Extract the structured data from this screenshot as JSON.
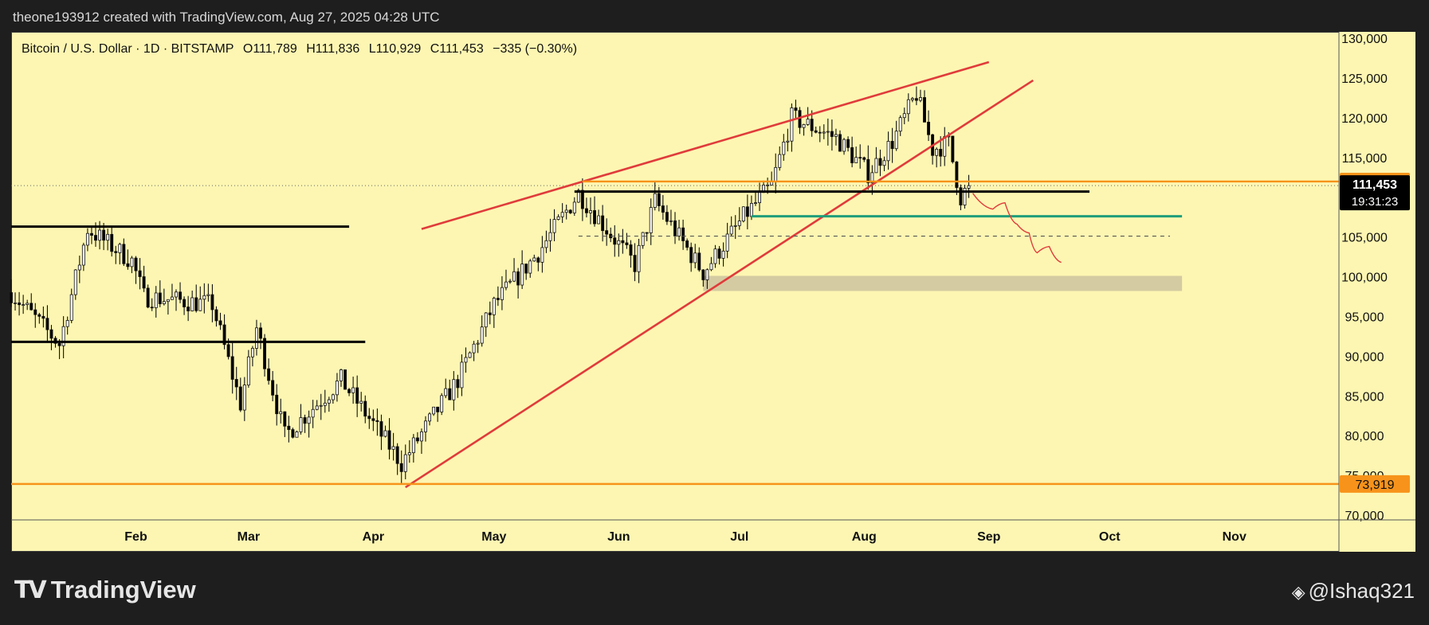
{
  "header": {
    "attribution": "theone193912 created with TradingView.com, Aug 27, 2025 04:28 UTC"
  },
  "legend": {
    "symbol": "Bitcoin / U.S. Dollar · 1D · BITSTAMP",
    "open": "O111,789",
    "high": "H111,836",
    "low": "L110,929",
    "close": "C111,453",
    "change": "−335 (−0.30%)"
  },
  "footer": {
    "brand": "TradingView",
    "user": "@Ishaq321",
    "user_icon": "binance-diamond-icon"
  },
  "colors": {
    "background": "#fdf6b2",
    "bull": "#ffffff",
    "bear": "#000000",
    "wedge": "#e03b3b",
    "support": "#000000",
    "orange_level": "#f7931a",
    "green_level": "#1f9e7a",
    "demand_zone": "#cfc6a0"
  },
  "chart_data": {
    "type": "candlestick",
    "timeframe": "1D",
    "y_axis": {
      "position": "right",
      "ticks": [
        "130,000",
        "125,000",
        "120,000",
        "115,000",
        "110,000",
        "105,000",
        "100,000",
        "95,000",
        "90,000",
        "85,000",
        "80,000",
        "75,000",
        "70,000"
      ],
      "range": [
        70000,
        130000
      ]
    },
    "x_axis": {
      "ticks": [
        "Feb",
        "Mar",
        "Apr",
        "May",
        "Jun",
        "Jul",
        "Aug",
        "Sep",
        "Oct",
        "Nov"
      ],
      "range": [
        "2025-01-01",
        "2025-11-27"
      ]
    },
    "price_labels": [
      {
        "value": "111,972",
        "kind": "orange-level"
      },
      {
        "value": "111,453",
        "sub": "19:31:23",
        "kind": "last-price"
      },
      {
        "value": "73,919",
        "kind": "orange-level"
      }
    ],
    "anchors": [
      {
        "date": "2025-01-01",
        "price": 98000
      },
      {
        "date": "2025-01-13",
        "price": 91500
      },
      {
        "date": "2025-01-20",
        "price": 106000
      },
      {
        "date": "2025-01-31",
        "price": 102000
      },
      {
        "date": "2025-02-03",
        "price": 97500
      },
      {
        "date": "2025-02-20",
        "price": 96500
      },
      {
        "date": "2025-02-27",
        "price": 84000
      },
      {
        "date": "2025-03-03",
        "price": 93500
      },
      {
        "date": "2025-03-10",
        "price": 80000
      },
      {
        "date": "2025-03-24",
        "price": 87000
      },
      {
        "date": "2025-04-06",
        "price": 78000
      },
      {
        "date": "2025-04-08",
        "price": 76500
      },
      {
        "date": "2025-04-22",
        "price": 87000
      },
      {
        "date": "2025-05-01",
        "price": 96500
      },
      {
        "date": "2025-05-12",
        "price": 103000
      },
      {
        "date": "2025-05-22",
        "price": 110500
      },
      {
        "date": "2025-06-05",
        "price": 101500
      },
      {
        "date": "2025-06-10",
        "price": 109500
      },
      {
        "date": "2025-06-22",
        "price": 100500
      },
      {
        "date": "2025-07-02",
        "price": 107500
      },
      {
        "date": "2025-07-09",
        "price": 111500
      },
      {
        "date": "2025-07-14",
        "price": 120000
      },
      {
        "date": "2025-07-25",
        "price": 117500
      },
      {
        "date": "2025-08-02",
        "price": 113000
      },
      {
        "date": "2025-08-08",
        "price": 117000
      },
      {
        "date": "2025-08-14",
        "price": 123000
      },
      {
        "date": "2025-08-18",
        "price": 116000
      },
      {
        "date": "2025-08-22",
        "price": 116800
      },
      {
        "date": "2025-08-25",
        "price": 110000
      },
      {
        "date": "2025-08-27",
        "price": 111453
      }
    ],
    "drawings": [
      {
        "kind": "wedge-upper",
        "from": {
          "date": "2025-04-13",
          "price": 106000
        },
        "to": {
          "date": "2025-09-01",
          "price": 127000
        },
        "color": "#e03b3b"
      },
      {
        "kind": "wedge-lower",
        "from": {
          "date": "2025-04-09",
          "price": 73500
        },
        "to": {
          "date": "2025-09-12",
          "price": 124700
        },
        "color": "#e03b3b"
      },
      {
        "kind": "resistance",
        "from": {
          "date": "2025-01-01",
          "price": 106300
        },
        "to": {
          "date": "2025-03-26",
          "price": 106300
        },
        "color": "#000000"
      },
      {
        "kind": "support",
        "from": {
          "date": "2025-01-01",
          "price": 91800
        },
        "to": {
          "date": "2025-03-30",
          "price": 91800
        },
        "color": "#000000"
      },
      {
        "kind": "support",
        "from": {
          "date": "2025-05-21",
          "price": 110700
        },
        "to": {
          "date": "2025-09-26",
          "price": 110700
        },
        "color": "#000000"
      },
      {
        "kind": "level",
        "from": {
          "date": "2025-05-23",
          "price": 111972
        },
        "to": {
          "date": "2025-11-27",
          "price": 111972
        },
        "color": "#f7931a"
      },
      {
        "kind": "level",
        "from": {
          "date": "2025-01-01",
          "price": 73919
        },
        "to": {
          "date": "2025-11-27",
          "price": 73919
        },
        "color": "#f7931a"
      },
      {
        "kind": "target",
        "from": {
          "date": "2025-07-04",
          "price": 107600
        },
        "to": {
          "date": "2025-10-19",
          "price": 107600
        },
        "color": "#1f9e7a"
      },
      {
        "kind": "dashed",
        "from": {
          "date": "2025-05-22",
          "price": 105100
        },
        "to": {
          "date": "2025-10-16",
          "price": 105100
        },
        "color": "#555555"
      },
      {
        "kind": "zone",
        "from": {
          "date": "2025-06-22",
          "price": 100100
        },
        "to": {
          "date": "2025-10-19",
          "price": 98200
        },
        "color": "#cfc6a0"
      }
    ],
    "projection": [
      {
        "date": "2025-08-28",
        "price": 110500
      },
      {
        "date": "2025-09-02",
        "price": 108500
      },
      {
        "date": "2025-09-05",
        "price": 109300
      },
      {
        "date": "2025-09-08",
        "price": 106600
      },
      {
        "date": "2025-09-11",
        "price": 105500
      },
      {
        "date": "2025-09-13",
        "price": 103000
      },
      {
        "date": "2025-09-16",
        "price": 103800
      },
      {
        "date": "2025-09-19",
        "price": 101800
      }
    ]
  }
}
